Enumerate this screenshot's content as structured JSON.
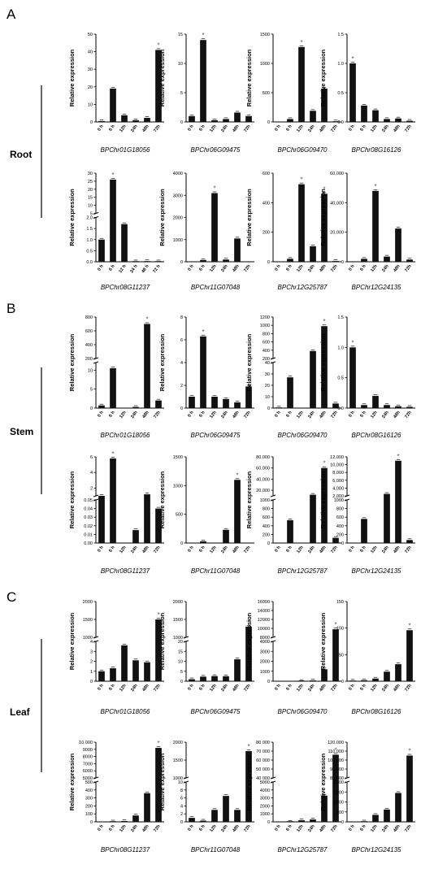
{
  "figure": {
    "sections": [
      {
        "letter": "A",
        "tissue": "Root"
      },
      {
        "letter": "B",
        "tissue": "Stem"
      },
      {
        "letter": "C",
        "tissue": "Leaf"
      }
    ]
  },
  "chart_data": [
    {
      "type": "bar",
      "section": "A",
      "tissue": "Root",
      "gene": "BPChr01G18056",
      "ylabel": "Relative expression",
      "categories": [
        "0 h",
        "6 h",
        "12h",
        "24h",
        "48h",
        "72h"
      ],
      "values": [
        0.5,
        19,
        3.8,
        1,
        2.3,
        41
      ],
      "ylim": [
        0,
        50
      ],
      "yticks": [
        0,
        10,
        20,
        30,
        40,
        50
      ],
      "significant": [
        5
      ]
    },
    {
      "type": "bar",
      "section": "A",
      "tissue": "Root",
      "gene": "BPChr06G09475",
      "ylabel": "Relative expression",
      "categories": [
        "0 h",
        "6 h",
        "12h",
        "24h",
        "48h",
        "72h"
      ],
      "values": [
        1,
        14,
        0.3,
        0.5,
        1.6,
        1
      ],
      "ylim": [
        0,
        15
      ],
      "yticks": [
        0,
        5,
        10,
        15
      ],
      "significant": [
        1
      ]
    },
    {
      "type": "bar",
      "section": "A",
      "tissue": "Root",
      "gene": "BPChr06G09470",
      "ylabel": "Relative expression",
      "categories": [
        "0 h",
        "6 h",
        "12h",
        "24h",
        "48h",
        "72h"
      ],
      "values": [
        0,
        50,
        1280,
        190,
        570,
        10
      ],
      "ylim": [
        0,
        1500
      ],
      "yticks": [
        0,
        500,
        1000,
        1500
      ],
      "significant": [
        2
      ]
    },
    {
      "type": "bar",
      "section": "A",
      "tissue": "Root",
      "gene": "BPChr08G16126",
      "ylabel": "Relative expression",
      "categories": [
        "0 h",
        "6 h",
        "12h",
        "24h",
        "48h",
        "72h"
      ],
      "values": [
        1,
        0.28,
        0.2,
        0.05,
        0.06,
        0.02
      ],
      "ylim": [
        0,
        1.5
      ],
      "yticks": [
        0,
        0.5,
        1.0,
        1.5
      ],
      "yticklabels": [
        "0.0",
        "0.5",
        "1.0",
        "1.5"
      ],
      "significant": [
        0
      ]
    },
    {
      "type": "bar",
      "section": "A",
      "tissue": "Root",
      "gene": "BPChr08G11237",
      "ylabel": "Relative expression",
      "categories": [
        "0 h",
        "6 h",
        "12 h",
        "24 h",
        "48 h",
        "72 h"
      ],
      "values": [
        1,
        26,
        1.7,
        0.02,
        0.03,
        0.02
      ],
      "ylim": [
        0,
        30
      ],
      "break": [
        2,
        5
      ],
      "yticks": [
        0,
        0.5,
        1.0,
        1.5,
        2.0,
        5,
        10,
        15,
        20,
        25,
        30
      ],
      "yticklabels": [
        "0.0",
        "0.5",
        "1.0",
        "1.5",
        "2.0",
        "5",
        "10",
        "15",
        "20",
        "25",
        "30"
      ],
      "significant": [
        1
      ]
    },
    {
      "type": "bar",
      "section": "A",
      "tissue": "Root",
      "gene": "BPChr11G07048",
      "ylabel": "Relative expression",
      "categories": [
        "0 h",
        "6 h",
        "12h",
        "24h",
        "48h",
        "72h"
      ],
      "values": [
        0,
        80,
        3100,
        100,
        1050,
        0
      ],
      "ylim": [
        0,
        4000
      ],
      "yticks": [
        0,
        1000,
        2000,
        3000,
        4000
      ],
      "significant": [
        2
      ]
    },
    {
      "type": "bar",
      "section": "A",
      "tissue": "Root",
      "gene": "BPChr12G25787",
      "ylabel": "Relative expression",
      "categories": [
        "0 h",
        "6 h",
        "12h",
        "24h",
        "48h",
        "72h"
      ],
      "values": [
        0,
        20,
        525,
        105,
        460,
        5
      ],
      "ylim": [
        0,
        600
      ],
      "yticks": [
        0,
        200,
        400,
        600
      ],
      "significant": [
        2,
        4
      ]
    },
    {
      "type": "bar",
      "section": "A",
      "tissue": "Root",
      "gene": "BPChr12G24135",
      "ylabel": "Relative expression",
      "categories": [
        "0 h",
        "6 h",
        "12h",
        "24h",
        "48h",
        "72h"
      ],
      "values": [
        0,
        2000,
        48000,
        3500,
        22500,
        1500
      ],
      "ylim": [
        0,
        60000
      ],
      "yticks": [
        0,
        20000,
        40000,
        60000
      ],
      "yticklabels": [
        "0",
        "20,000",
        "40,000",
        "60,000"
      ],
      "significant": [
        2
      ]
    },
    {
      "type": "bar",
      "section": "B",
      "tissue": "Stem",
      "gene": "BPChr01G18056",
      "ylabel": "Relative expression",
      "categories": [
        "0 h",
        "6 h",
        "12h",
        "24h",
        "48h",
        "72h"
      ],
      "values": [
        0.7,
        10.5,
        0,
        0.3,
        700,
        2
      ],
      "ylim": [
        0,
        800
      ],
      "break": [
        12,
        200
      ],
      "yticks": [
        0,
        5,
        10,
        200,
        400,
        600,
        800
      ],
      "yticklabels": [
        "0",
        "5",
        "10",
        "200",
        "400",
        "600",
        "800"
      ],
      "significant": [
        4
      ]
    },
    {
      "type": "bar",
      "section": "B",
      "tissue": "Stem",
      "gene": "BPChr06G09475",
      "ylabel": "Relative expression",
      "categories": [
        "0 h",
        "6 h",
        "12h",
        "24h",
        "48h",
        "72h"
      ],
      "values": [
        1,
        6.3,
        1,
        0.8,
        0.5,
        1.9
      ],
      "ylim": [
        0,
        8
      ],
      "yticks": [
        0,
        2,
        4,
        6,
        8
      ],
      "significant": [
        1
      ]
    },
    {
      "type": "bar",
      "section": "B",
      "tissue": "Stem",
      "gene": "BPChr06G09470",
      "ylabel": "Relative expression",
      "categories": [
        "0 h",
        "6 h",
        "12h",
        "24h",
        "48h",
        "72h"
      ],
      "values": [
        0.5,
        27,
        0,
        380,
        980,
        4
      ],
      "ylim": [
        0,
        1200
      ],
      "break": [
        40,
        200
      ],
      "yticks": [
        0,
        10,
        20,
        30,
        40,
        200,
        400,
        600,
        800,
        1000,
        1200
      ],
      "significant": [
        4
      ]
    },
    {
      "type": "bar",
      "section": "B",
      "tissue": "Stem",
      "gene": "BPChr08G16126",
      "ylabel": "Relative expression",
      "categories": [
        "0 h",
        "6 h",
        "12h",
        "24h",
        "48h",
        "72h"
      ],
      "values": [
        1,
        0.05,
        0.2,
        0.05,
        0.03,
        0.02
      ],
      "ylim": [
        0,
        1.5
      ],
      "yticks": [
        0,
        0.5,
        1.0,
        1.5
      ],
      "yticklabels": [
        "0.0",
        "0.5",
        "1.0",
        "1.5"
      ],
      "significant": [
        0
      ]
    },
    {
      "type": "bar",
      "section": "B",
      "tissue": "Stem",
      "gene": "BPChr08G11237",
      "ylabel": "Relative expression",
      "categories": [
        "0 h",
        "6 h",
        "12h",
        "24h",
        "48h",
        "72h"
      ],
      "values": [
        1,
        5.8,
        0,
        0.015,
        1.2,
        0.04
      ],
      "ylim": [
        0,
        6
      ],
      "break": [
        0.05,
        1
      ],
      "yticks": [
        0,
        0.01,
        0.02,
        0.03,
        0.04,
        0.05,
        2,
        4,
        6
      ],
      "yticklabels": [
        "0.00",
        "0.01",
        "0.02",
        "0.03",
        "0.04",
        "0.05",
        "2",
        "4",
        "6"
      ],
      "significant": [
        1
      ]
    },
    {
      "type": "bar",
      "section": "B",
      "tissue": "Stem",
      "gene": "BPChr11G07048",
      "ylabel": "Relative expression",
      "categories": [
        "0 h",
        "6 h",
        "12h",
        "24h",
        "48h",
        "72h"
      ],
      "values": [
        0,
        30,
        0,
        230,
        1100,
        0
      ],
      "ylim": [
        0,
        1500
      ],
      "yticks": [
        0,
        500,
        1000,
        1500
      ],
      "significant": [
        4
      ]
    },
    {
      "type": "bar",
      "section": "B",
      "tissue": "Stem",
      "gene": "BPChr12G25787",
      "ylabel": "Relative expression",
      "categories": [
        "0 h",
        "6 h",
        "12h",
        "24h",
        "48h",
        "72h"
      ],
      "values": [
        0,
        530,
        0,
        12000,
        60000,
        120
      ],
      "ylim": [
        0,
        80000
      ],
      "break": [
        1000,
        10000
      ],
      "yticks": [
        0,
        200,
        400,
        600,
        800,
        1000,
        20000,
        40000,
        60000,
        80000
      ],
      "yticklabels": [
        "0",
        "200",
        "400",
        "600",
        "800",
        "1000",
        "20,000",
        "40,000",
        "60,000",
        "80,000"
      ],
      "significant": [
        4
      ]
    },
    {
      "type": "bar",
      "section": "B",
      "tissue": "Stem",
      "gene": "BPChr12G24135",
      "ylabel": "Relative expression",
      "categories": [
        "0 h",
        "6 h",
        "12h",
        "24h",
        "48h",
        "72h"
      ],
      "values": [
        0,
        560,
        0,
        2500,
        11000,
        70
      ],
      "ylim": [
        0,
        12000
      ],
      "break": [
        1000,
        2000
      ],
      "yticks": [
        0,
        200,
        400,
        600,
        800,
        1000,
        2000,
        4000,
        6000,
        8000,
        10000,
        12000
      ],
      "yticklabels": [
        "0",
        "200",
        "400",
        "600",
        "800",
        "1000",
        "2,000",
        "4,000",
        "6,000",
        "8,000",
        "10,000",
        "12,000"
      ],
      "significant": [
        4
      ]
    },
    {
      "type": "bar",
      "section": "C",
      "tissue": "Leaf",
      "gene": "BPChr01G18056",
      "ylabel": "Relative expression",
      "categories": [
        "0 h",
        "6 h",
        "12h",
        "24h",
        "48h",
        "72h"
      ],
      "values": [
        1,
        1.3,
        3.6,
        2.1,
        1.9,
        1500
      ],
      "ylim": [
        0,
        2000
      ],
      "break": [
        4,
        1000
      ],
      "yticks": [
        0,
        1,
        2,
        3,
        4,
        1000,
        1500,
        2000
      ],
      "significant": [
        5
      ]
    },
    {
      "type": "bar",
      "section": "C",
      "tissue": "Leaf",
      "gene": "BPChr06G09475",
      "ylabel": "Relative expression",
      "categories": [
        "0 h",
        "6 h",
        "12h",
        "24h",
        "48h",
        "72h"
      ],
      "values": [
        1,
        2.3,
        2.6,
        2.5,
        11,
        1300
      ],
      "ylim": [
        0,
        2000
      ],
      "break": [
        20,
        1000
      ],
      "yticks": [
        0,
        5,
        10,
        15,
        20,
        1000,
        1500,
        2000
      ],
      "significant": [
        5
      ]
    },
    {
      "type": "bar",
      "section": "C",
      "tissue": "Leaf",
      "gene": "BPChr06G09470",
      "ylabel": "Relative expression",
      "categories": [
        "0 h",
        "6 h",
        "12h",
        "24h",
        "48h",
        "72h"
      ],
      "values": [
        0,
        0,
        10,
        80,
        1200,
        9800
      ],
      "ylim": [
        0,
        16000
      ],
      "break": [
        4000,
        8000
      ],
      "yticks": [
        0,
        1000,
        2000,
        3000,
        4000,
        8000,
        10000,
        12000,
        14000,
        16000
      ],
      "yticklabels": [
        "0",
        "1000",
        "2000",
        "3000",
        "4000",
        "8000",
        "10000",
        "12000",
        "14000",
        "16000"
      ],
      "significant": [
        5
      ]
    },
    {
      "type": "bar",
      "section": "C",
      "tissue": "Leaf",
      "gene": "BPChr08G16126",
      "ylabel": "Relative expression",
      "categories": [
        "0 h",
        "6 h",
        "12h",
        "24h",
        "48h",
        "72h"
      ],
      "values": [
        1,
        2,
        5,
        18,
        32,
        96
      ],
      "ylim": [
        0,
        150
      ],
      "yticks": [
        0,
        50,
        100,
        150
      ],
      "significant": [
        5
      ]
    },
    {
      "type": "bar",
      "section": "C",
      "tissue": "Leaf",
      "gene": "BPChr08G11237",
      "ylabel": "Relative expression",
      "categories": [
        "0 h",
        "6 h",
        "12h",
        "24h",
        "48h",
        "72h"
      ],
      "values": [
        0,
        5,
        10,
        80,
        360,
        9200
      ],
      "ylim": [
        0,
        10000
      ],
      "break": [
        500,
        5000
      ],
      "yticks": [
        0,
        100,
        200,
        300,
        400,
        500,
        5000,
        6000,
        7000,
        8000,
        9000,
        10000
      ],
      "yticklabels": [
        "0",
        "100",
        "200",
        "300",
        "400",
        "500",
        "5000",
        "6000",
        "7000",
        "8000",
        "9000",
        "10 000"
      ],
      "significant": [
        5
      ]
    },
    {
      "type": "bar",
      "section": "C",
      "tissue": "Leaf",
      "gene": "BPChr11G07048",
      "ylabel": "Relative expression",
      "categories": [
        "0 h",
        "6 h",
        "12h",
        "24h",
        "48h",
        "72h"
      ],
      "values": [
        1,
        0.3,
        3,
        6.5,
        3,
        1750
      ],
      "ylim": [
        0,
        2000
      ],
      "break": [
        10,
        1000
      ],
      "yticks": [
        0,
        2,
        4,
        6,
        8,
        10,
        1000,
        1500,
        2000
      ],
      "significant": [
        5
      ]
    },
    {
      "type": "bar",
      "section": "C",
      "tissue": "Leaf",
      "gene": "BPChr12G25787",
      "ylabel": "Relative expression",
      "categories": [
        "0 h",
        "6 h",
        "12h",
        "24h",
        "48h",
        "72h"
      ],
      "values": [
        0,
        5,
        200,
        300,
        3300,
        66000
      ],
      "ylim": [
        0,
        80000
      ],
      "break": [
        5000,
        40000
      ],
      "yticks": [
        0,
        1000,
        2000,
        3000,
        4000,
        5000,
        40000,
        50000,
        60000,
        70000,
        80000
      ],
      "yticklabels": [
        "0",
        "1000",
        "2000",
        "3000",
        "4000",
        "5000",
        "40 000",
        "50 000",
        "60 000",
        "70 000",
        "80 000"
      ],
      "significant": [
        5
      ]
    },
    {
      "type": "bar",
      "section": "C",
      "tissue": "Leaf",
      "gene": "BPChr12G24135",
      "ylabel": "Relative expression",
      "categories": [
        "0 h",
        "6 h",
        "12h",
        "24h",
        "48h",
        "72h"
      ],
      "values": [
        0,
        20,
        350,
        620,
        1450,
        105000
      ],
      "ylim": [
        0,
        120000
      ],
      "break": [
        2000,
        80000
      ],
      "yticks": [
        0,
        500,
        1000,
        1500,
        2000,
        80000,
        90000,
        100000,
        110000,
        120000
      ],
      "yticklabels": [
        "0",
        "500",
        "1000",
        "1500",
        "2000",
        "80.000",
        "90.000",
        "100.000",
        "110.000",
        "120.000"
      ],
      "significant": [
        5
      ]
    }
  ]
}
